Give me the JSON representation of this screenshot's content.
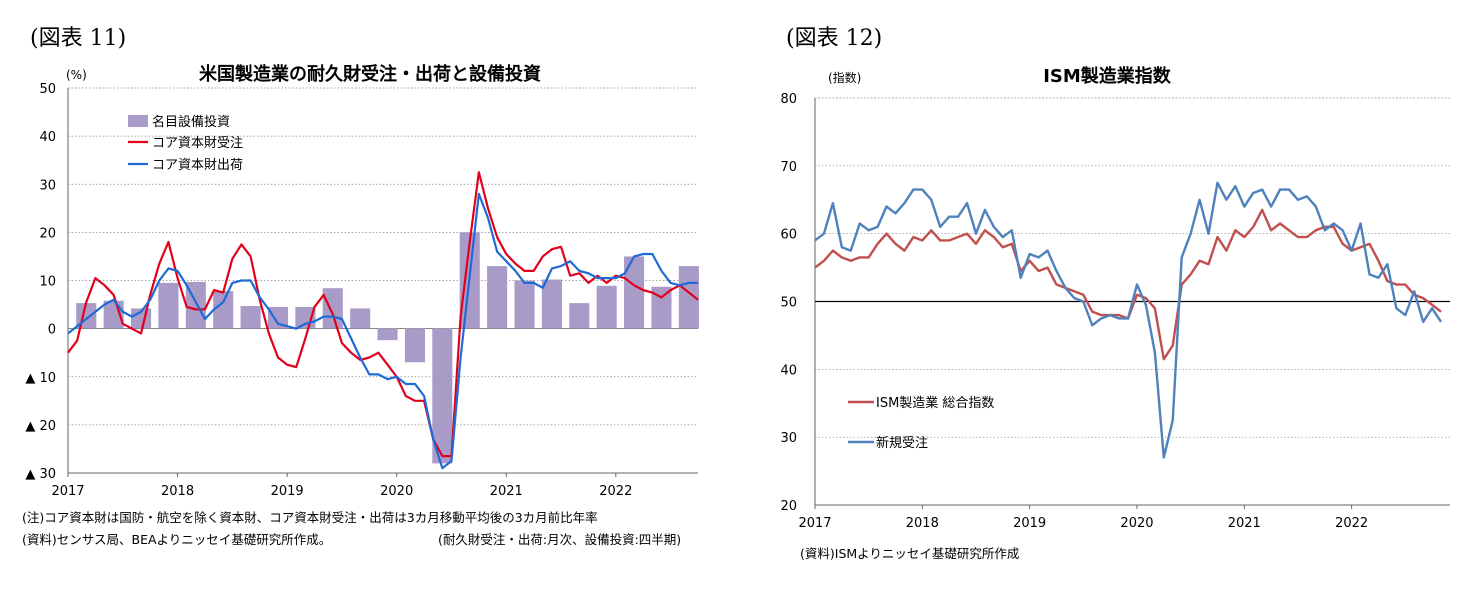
{
  "left": {
    "fig_label": "(図表 11)",
    "note1": "(注)コア資本財は国防・航空を除く資本財、コア資本財受注・出荷は3カ月移動平均後の3カ月前比年率",
    "note2": "(資料)センサス局、BEAよりニッセイ基礎研究所作成。",
    "note3": "(耐久財受注・出荷:月次、設備投資:四半期)"
  },
  "right": {
    "fig_label": "(図表 12)",
    "note1": "(資料)ISMよりニッセイ基礎研究所作成"
  },
  "chart_data": [
    {
      "type": "bar+line",
      "title": "米国製造業の耐久財受注・出荷と設備投資",
      "ylabel": "(%)",
      "ylim": [
        -30,
        50
      ],
      "y_ticks": [
        50,
        40,
        30,
        20,
        10,
        0,
        -10,
        -20,
        -30
      ],
      "y_tick_labels": [
        "50",
        "40",
        "30",
        "20",
        "10",
        "0",
        "▲ 10",
        "▲ 20",
        "▲ 30"
      ],
      "x_tick_labels": [
        "2017",
        "2018",
        "2019",
        "2020",
        "2021",
        "2022"
      ],
      "x_range_months": [
        0,
        69
      ],
      "legend": {
        "position": "top-left",
        "items": [
          {
            "label": "名目設備投資",
            "color": "#a99bc8",
            "kind": "bar"
          },
          {
            "label": "コア資本財受注",
            "color": "#e3001b",
            "kind": "line"
          },
          {
            "label": "コア資本財出荷",
            "color": "#1f6ad6",
            "kind": "line"
          }
        ]
      },
      "bars": {
        "name": "名目設備投資",
        "color": "#a99bc8",
        "x": [
          2,
          5,
          8,
          11,
          14,
          17,
          20,
          23,
          26,
          29,
          32,
          35,
          38,
          41,
          44,
          47,
          50,
          53,
          56,
          59,
          62,
          65,
          68
        ],
        "values": [
          5.3,
          5.8,
          4.2,
          9.5,
          9.7,
          7.8,
          4.7,
          4.5,
          4.5,
          8.4,
          4.2,
          -2.4,
          -7.0,
          -28.0,
          20.0,
          13.0,
          10.0,
          10.2,
          5.3,
          8.9,
          15.0,
          8.7,
          13.0
        ]
      },
      "series": [
        {
          "name": "コア資本財受注",
          "color": "#e3001b",
          "values": [
            -5,
            -2.5,
            5.5,
            10.5,
            9,
            7,
            1,
            0,
            -1,
            7,
            13.5,
            18,
            10.5,
            4.5,
            4,
            4,
            8,
            7.5,
            14.5,
            17.5,
            15,
            6,
            -1,
            -6,
            -7.5,
            -8,
            -2,
            4.5,
            7,
            3,
            -3,
            -5,
            -6.5,
            -6,
            -5,
            -7.5,
            -10,
            -14,
            -15,
            -15,
            -23,
            -26.5,
            -26.5,
            2.5,
            18,
            32.5,
            25,
            19,
            15.5,
            13.5,
            12,
            12,
            15,
            16.5,
            17,
            11,
            11.5,
            9.5,
            11,
            9.5,
            11,
            10.5,
            9,
            8,
            7.5,
            6.5,
            8,
            9,
            7.5,
            6
          ]
        },
        {
          "name": "コア資本財出荷",
          "color": "#1f6ad6",
          "values": [
            -1,
            0.5,
            2,
            3.5,
            5,
            6,
            3.5,
            2.5,
            3.5,
            6,
            10,
            12.5,
            12,
            9,
            5.5,
            2,
            4,
            5.5,
            9.5,
            10,
            10,
            6.5,
            4,
            1,
            0.5,
            0,
            1,
            1.5,
            2.5,
            2.5,
            2,
            -2,
            -6,
            -9.5,
            -9.5,
            -10.5,
            -10,
            -11.5,
            -11.5,
            -14,
            -23,
            -29,
            -27.5,
            -6,
            11,
            28,
            23,
            16,
            14,
            12,
            9.5,
            9.5,
            8.5,
            12.5,
            13,
            14,
            12,
            11.5,
            10.5,
            10.5,
            10.5,
            11.5,
            15,
            15.5,
            15.5,
            12,
            9.5,
            9,
            9.5,
            9.5
          ]
        }
      ]
    },
    {
      "type": "line",
      "title": "ISM製造業指数",
      "ylabel": "(指数)",
      "ylim": [
        20,
        80
      ],
      "y_ticks": [
        80,
        70,
        60,
        50,
        40,
        30,
        20
      ],
      "y_tick_labels": [
        "80",
        "70",
        "60",
        "50",
        "40",
        "30",
        "20"
      ],
      "x_tick_labels": [
        "2017",
        "2018",
        "2019",
        "2020",
        "2021",
        "2022"
      ],
      "x_range_months": [
        0,
        71
      ],
      "reference_line": 50,
      "legend": {
        "position": "bottom-left",
        "items": [
          {
            "label": "ISM製造業 総合指数",
            "color": "#c0504d"
          },
          {
            "label": "新規受注",
            "color": "#4f81bd"
          }
        ]
      },
      "series": [
        {
          "name": "ISM製造業 総合指数",
          "color": "#c0504d",
          "values": [
            55,
            56,
            57.5,
            56.5,
            56,
            56.5,
            56.5,
            58.5,
            60,
            58.5,
            57.5,
            59.5,
            59,
            60.5,
            59,
            59,
            59.5,
            60,
            58.5,
            60.5,
            59.5,
            58,
            58.5,
            54.5,
            56,
            54.5,
            55,
            52.5,
            52,
            51.5,
            51,
            48.5,
            48,
            48,
            48,
            47.5,
            51,
            50.5,
            49,
            41.5,
            43.5,
            52.5,
            54,
            56,
            55.5,
            59.5,
            57.5,
            60.5,
            59.5,
            61,
            63.5,
            60.5,
            61.5,
            60.5,
            59.5,
            59.5,
            60.5,
            61,
            61,
            58.5,
            57.5,
            58,
            58.5,
            56,
            53,
            52.5,
            52.5,
            51,
            50.5,
            49.5,
            48.5
          ]
        },
        {
          "name": "新規受注",
          "color": "#4f81bd",
          "values": [
            59,
            60,
            64.5,
            58,
            57.5,
            61.5,
            60.5,
            61,
            64,
            63,
            64.5,
            66.5,
            66.5,
            65,
            61,
            62.5,
            62.5,
            64.5,
            60,
            63.5,
            61,
            59.5,
            60.5,
            53.5,
            57,
            56.5,
            57.5,
            54.5,
            52,
            50.5,
            50,
            46.5,
            47.5,
            48,
            47.5,
            47.5,
            52.5,
            49.5,
            42.5,
            27,
            32.5,
            56.5,
            60,
            65,
            60,
            67.5,
            65,
            67,
            64,
            66,
            66.5,
            64,
            66.5,
            66.5,
            65,
            65.5,
            64,
            60.5,
            61.5,
            60.5,
            57.5,
            61.5,
            54,
            53.5,
            55.5,
            49,
            48,
            51.5,
            47,
            49,
            47
          ]
        }
      ]
    }
  ]
}
